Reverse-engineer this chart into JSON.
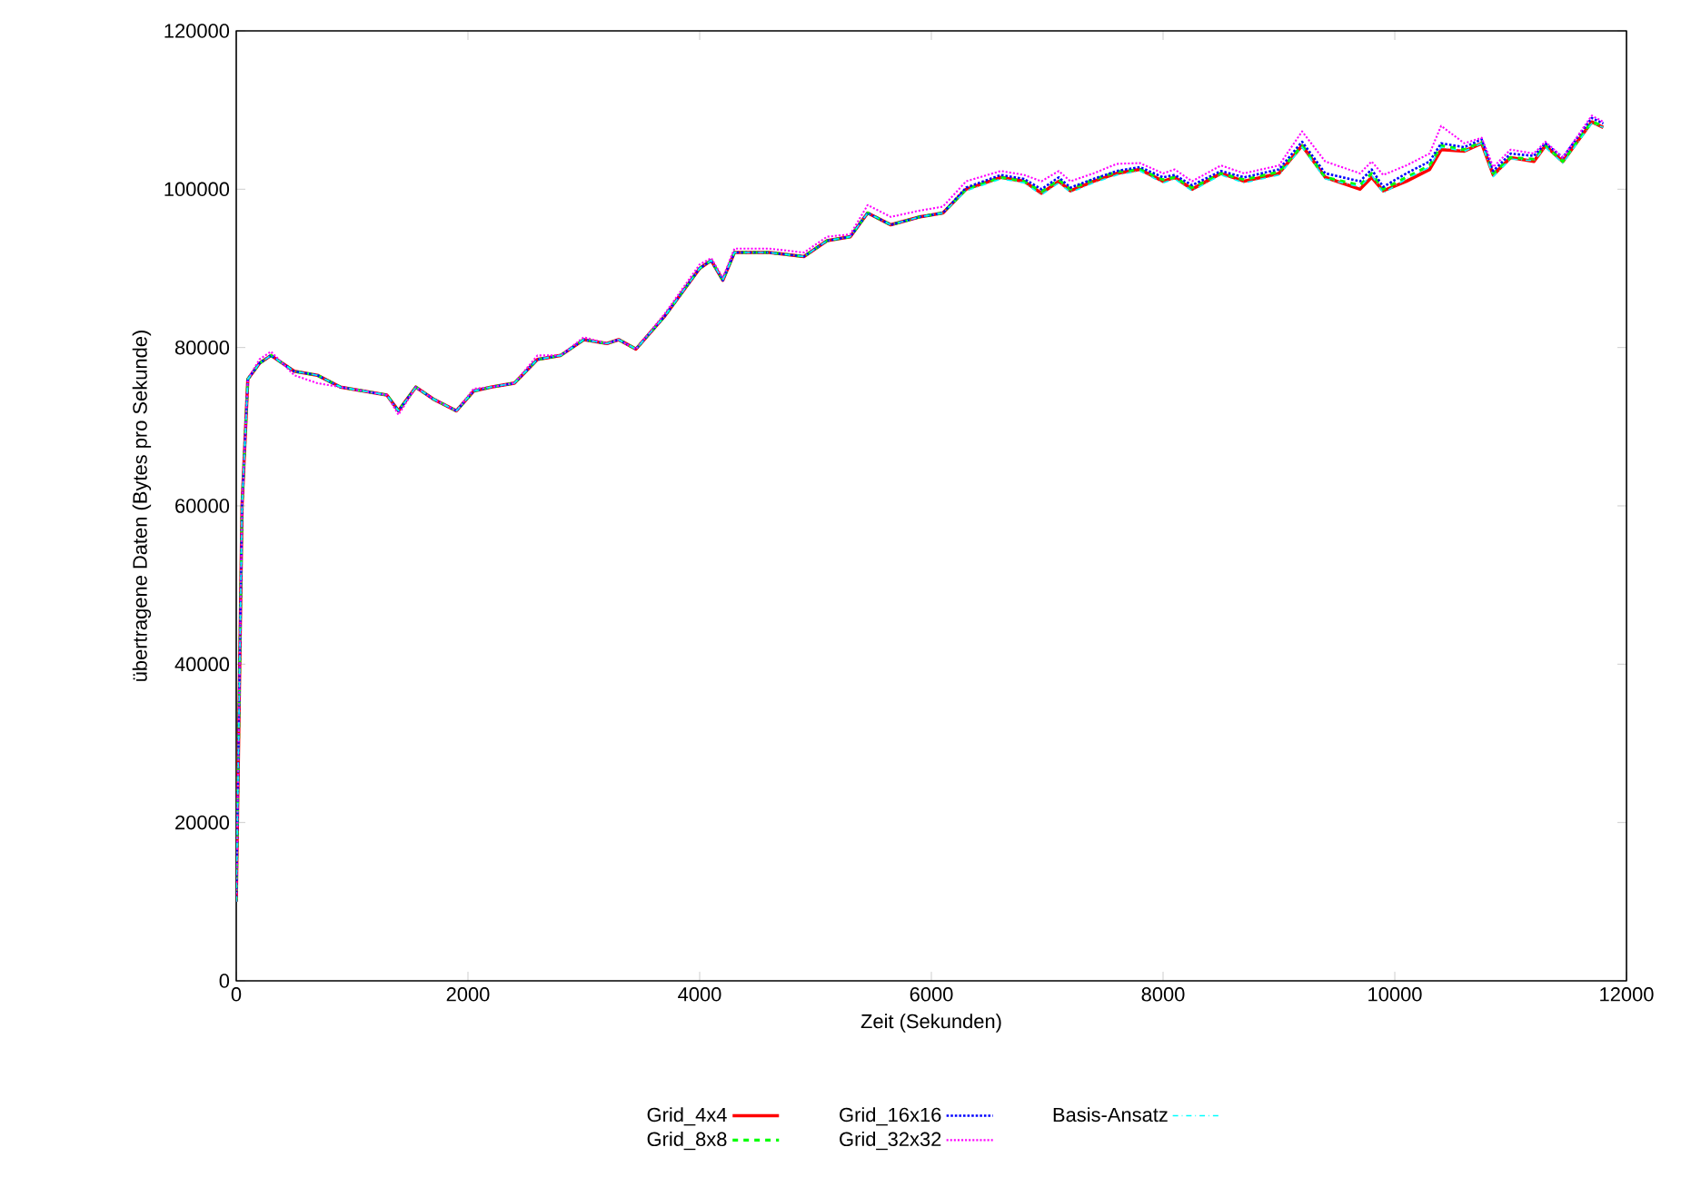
{
  "chart_data": {
    "type": "line",
    "xlabel": "Zeit (Sekunden)",
    "ylabel": "übertragene Daten (Bytes pro Sekunde)",
    "x": [
      0,
      50,
      100,
      200,
      300,
      500,
      700,
      900,
      1100,
      1300,
      1400,
      1550,
      1700,
      1900,
      2050,
      2200,
      2400,
      2600,
      2800,
      3000,
      3200,
      3300,
      3450,
      3700,
      4000,
      4100,
      4200,
      4300,
      4600,
      4900,
      5100,
      5300,
      5450,
      5650,
      5900,
      6100,
      6300,
      6600,
      6800,
      6950,
      7100,
      7200,
      7400,
      7600,
      7800,
      8000,
      8100,
      8250,
      8500,
      8700,
      9000,
      9200,
      9400,
      9700,
      9800,
      9900,
      10100,
      10300,
      10400,
      10600,
      10750,
      10850,
      11000,
      11200,
      11300,
      11450,
      11700,
      11800
    ],
    "series": [
      {
        "name": "Grid_4x4",
        "color": "#ff0000",
        "line_style": "solid",
        "values": [
          10000,
          60000,
          76000,
          78000,
          79000,
          77000,
          76500,
          75000,
          74500,
          74000,
          72000,
          75000,
          73500,
          72000,
          74500,
          75000,
          75500,
          78500,
          79000,
          81000,
          80500,
          81000,
          79800,
          84000,
          90000,
          91000,
          88500,
          92000,
          92000,
          91500,
          93500,
          94000,
          97000,
          95500,
          96500,
          97000,
          100000,
          101500,
          101000,
          99500,
          101000,
          99800,
          101000,
          102000,
          102500,
          101000,
          101500,
          100000,
          102000,
          101000,
          102000,
          105500,
          101500,
          100000,
          101500,
          99800,
          101000,
          102500,
          105000,
          104800,
          105800,
          101800,
          104000,
          103500,
          105500,
          103500,
          108500,
          107800
        ]
      },
      {
        "name": "Grid_8x8",
        "color": "#00ff00",
        "line_style": "dashed",
        "values": [
          10000,
          60000,
          76000,
          78000,
          79000,
          77000,
          76500,
          75000,
          74500,
          74000,
          72000,
          75000,
          73500,
          72000,
          74500,
          75000,
          75500,
          78500,
          79000,
          81000,
          80500,
          81000,
          79800,
          84000,
          90000,
          91000,
          88500,
          92000,
          92000,
          91500,
          93500,
          94000,
          97000,
          95500,
          96500,
          97000,
          100000,
          101500,
          101000,
          99700,
          101200,
          100000,
          101200,
          102200,
          102500,
          101200,
          101500,
          100200,
          102000,
          101200,
          102200,
          105500,
          101500,
          100500,
          102000,
          100000,
          101500,
          103000,
          105500,
          105000,
          106000,
          102000,
          104000,
          103800,
          105500,
          103500,
          108500,
          108000
        ]
      },
      {
        "name": "Grid_16x16",
        "color": "#0000ff",
        "line_style": "dotted",
        "values": [
          10000,
          60000,
          76000,
          78000,
          79000,
          77000,
          76500,
          75000,
          74500,
          74000,
          72000,
          75000,
          73500,
          72000,
          74500,
          75000,
          75500,
          78500,
          79000,
          81000,
          80500,
          81000,
          79800,
          84000,
          90000,
          91000,
          88500,
          92000,
          92000,
          91500,
          93500,
          94000,
          97000,
          95500,
          96500,
          97000,
          100200,
          101800,
          101300,
          100000,
          101500,
          100200,
          101300,
          102300,
          102800,
          101500,
          101800,
          100500,
          102300,
          101500,
          102500,
          106000,
          102000,
          101000,
          102500,
          100300,
          102000,
          103500,
          105800,
          105300,
          106300,
          102300,
          104500,
          104200,
          105800,
          104000,
          109000,
          108300
        ]
      },
      {
        "name": "Grid_32x32",
        "color": "#ff00ff",
        "line_style": "dotted",
        "values": [
          10000,
          60000,
          76000,
          78500,
          79500,
          76500,
          75500,
          75000,
          74500,
          74000,
          71500,
          75000,
          73500,
          72000,
          74800,
          75000,
          75500,
          79000,
          79000,
          81300,
          80500,
          81000,
          79800,
          84300,
          90500,
          91300,
          88800,
          92500,
          92500,
          92000,
          94000,
          94300,
          98000,
          96500,
          97300,
          97800,
          101000,
          102300,
          101800,
          101000,
          102300,
          101000,
          102000,
          103200,
          103300,
          102000,
          102500,
          101000,
          103000,
          102000,
          103000,
          107300,
          103500,
          102000,
          103500,
          101800,
          103000,
          104500,
          108000,
          105800,
          106500,
          102800,
          105000,
          104500,
          106000,
          104000,
          109300,
          108500
        ]
      },
      {
        "name": "Basis-Ansatz",
        "color": "#00ffff",
        "line_style": "dashdot",
        "values": [
          10000,
          60000,
          76000,
          78000,
          79000,
          77000,
          76500,
          75000,
          74500,
          74000,
          72000,
          75000,
          73500,
          72000,
          74500,
          75000,
          75500,
          78500,
          79000,
          81000,
          80500,
          81000,
          79800,
          84000,
          90000,
          91000,
          88500,
          92000,
          92000,
          91500,
          93500,
          94000,
          97000,
          95500,
          96500,
          97000,
          99800,
          101300,
          100800,
          99300,
          100800,
          99600,
          100800,
          101800,
          102300,
          100800,
          101300,
          99800,
          101800,
          100800,
          101800,
          105300,
          101300,
          100300,
          101800,
          99500,
          101300,
          102800,
          105300,
          104800,
          105800,
          101600,
          103800,
          103600,
          105300,
          103300,
          108300,
          107800
        ]
      }
    ],
    "xlim": [
      0,
      12000
    ],
    "ylim": [
      0,
      120000
    ],
    "xticks": [
      0,
      2000,
      4000,
      6000,
      8000,
      10000,
      12000
    ],
    "yticks": [
      0,
      20000,
      40000,
      60000,
      80000,
      100000,
      120000
    ],
    "grid": false,
    "legend": "bottom",
    "marker": "none"
  }
}
